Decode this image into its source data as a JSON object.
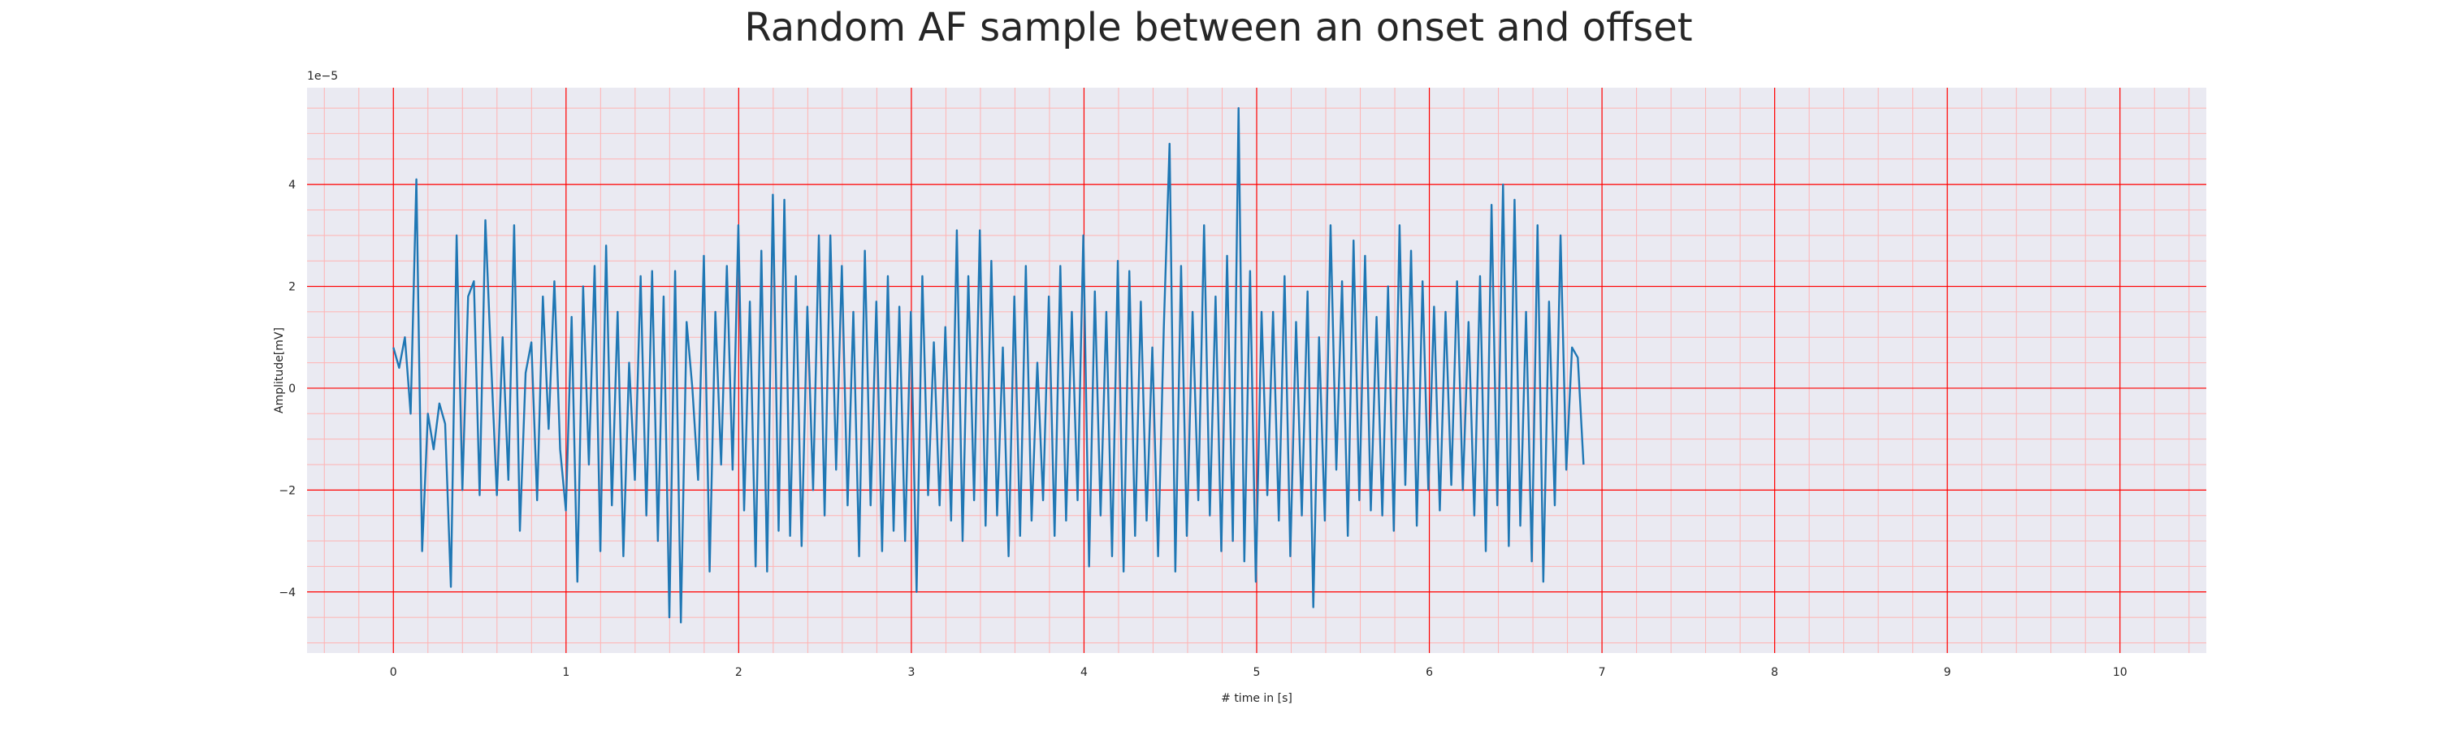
{
  "chart_data": {
    "type": "line",
    "title": "Random AF sample between an onset and offset",
    "xlabel": "# time in [s]",
    "ylabel": "Amplitude[mV]",
    "y_offset_label": "1e−5",
    "xlim": [
      -0.5,
      10.5
    ],
    "ylim": [
      -5.2,
      5.9
    ],
    "xticks": [
      0,
      1,
      2,
      3,
      4,
      5,
      6,
      7,
      8,
      9,
      10
    ],
    "yticks": [
      -4,
      -2,
      0,
      2,
      4
    ],
    "grid": true,
    "grid_color": "#ff0000",
    "minor_grid_color": "#ffb3b3",
    "background_color": "#eaeaf2",
    "line_color": "#1f77b4",
    "series": [
      {
        "x_start": 0.0,
        "x_step": 0.0333,
        "values": [
          0.8,
          0.4,
          1.0,
          -0.5,
          4.1,
          -3.2,
          -0.5,
          -1.2,
          -0.3,
          -0.7,
          -3.9,
          3.0,
          -2.0,
          1.8,
          2.1,
          -2.1,
          3.3,
          0.5,
          -2.1,
          1.0,
          -1.8,
          3.2,
          -2.8,
          0.3,
          0.9,
          -2.2,
          1.8,
          -0.8,
          2.1,
          -1.2,
          -2.4,
          1.4,
          -3.8,
          2.0,
          -1.5,
          2.4,
          -3.2,
          2.8,
          -2.3,
          1.5,
          -3.3,
          0.5,
          -1.8,
          2.2,
          -2.5,
          2.3,
          -3.0,
          1.8,
          -4.5,
          2.3,
          -4.6,
          1.3,
          0.0,
          -1.8,
          2.6,
          -3.6,
          1.5,
          -1.5,
          2.4,
          -1.6,
          3.2,
          -2.4,
          1.7,
          -3.5,
          2.7,
          -3.6,
          3.8,
          -2.8,
          3.7,
          -2.9,
          2.2,
          -3.1,
          1.6,
          -2.0,
          3.0,
          -2.5,
          3.0,
          -1.6,
          2.4,
          -2.3,
          1.5,
          -3.3,
          2.7,
          -2.3,
          1.7,
          -3.2,
          2.2,
          -2.8,
          1.6,
          -3.0,
          1.5,
          -4.0,
          2.2,
          -2.1,
          0.9,
          -2.3,
          1.2,
          -2.6,
          3.1,
          -3.0,
          2.2,
          -2.2,
          3.1,
          -2.7,
          2.5,
          -2.5,
          0.8,
          -3.3,
          1.8,
          -2.9,
          2.4,
          -2.6,
          0.5,
          -2.2,
          1.8,
          -2.9,
          2.4,
          -2.6,
          1.5,
          -2.2,
          3.0,
          -3.5,
          1.9,
          -2.5,
          1.5,
          -3.3,
          2.5,
          -3.6,
          2.3,
          -2.9,
          1.7,
          -2.6,
          0.8,
          -3.3,
          1.2,
          4.8,
          -3.6,
          2.4,
          -2.9,
          1.5,
          -2.2,
          3.2,
          -2.5,
          1.8,
          -3.2,
          2.6,
          -3.0,
          5.5,
          -3.4,
          2.3,
          -3.8,
          1.5,
          -2.1,
          1.5,
          -2.6,
          2.2,
          -3.3,
          1.3,
          -2.5,
          1.9,
          -4.3,
          1.0,
          -2.6,
          3.2,
          -1.6,
          2.1,
          -2.9,
          2.9,
          -2.2,
          2.6,
          -2.4,
          1.4,
          -2.5,
          2.0,
          -2.8,
          3.2,
          -1.9,
          2.7,
          -2.7,
          2.1,
          -2.0,
          1.6,
          -2.4,
          1.5,
          -1.9,
          2.1,
          -2.0,
          1.3,
          -2.5,
          2.2,
          -3.2,
          3.6,
          -2.3,
          4.0,
          -3.1,
          3.7,
          -2.7,
          1.5,
          -3.4,
          3.2,
          -3.8,
          1.7,
          -2.3,
          3.0,
          -1.6,
          0.8,
          0.6,
          -1.5
        ]
      }
    ]
  }
}
